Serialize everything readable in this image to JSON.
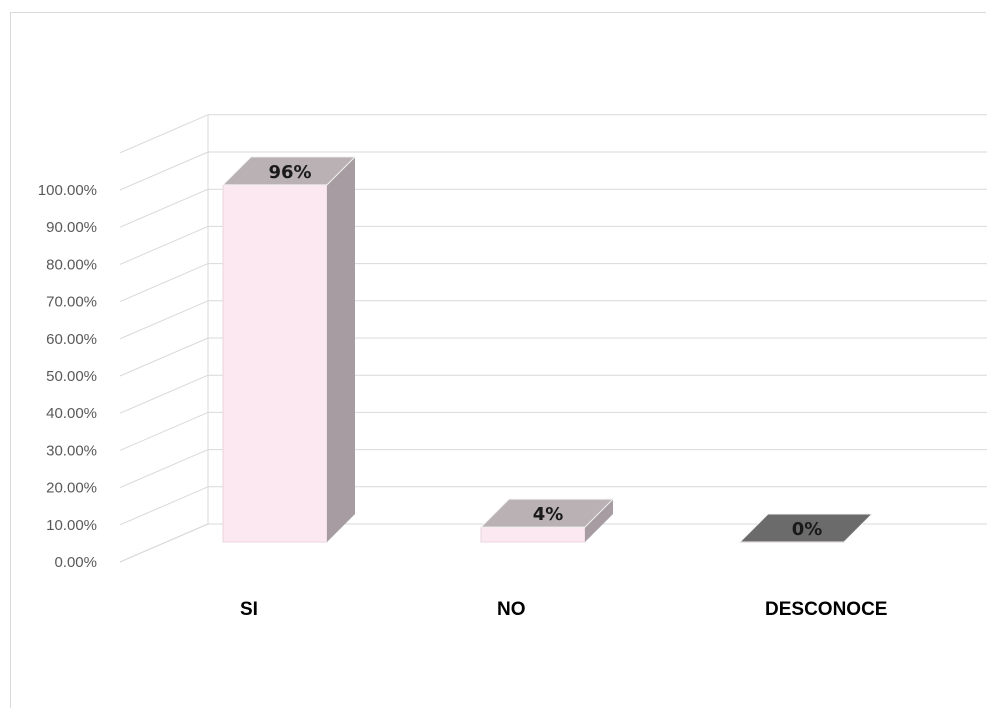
{
  "chart_data": {
    "type": "bar",
    "categories": [
      "SI",
      "NO",
      "DESCONOCE"
    ],
    "values": [
      96,
      4,
      0
    ],
    "data_labels": [
      "96%",
      "4%",
      "0%"
    ],
    "yticks": [
      "0.00%",
      "10.00%",
      "20.00%",
      "30.00%",
      "40.00%",
      "50.00%",
      "60.00%",
      "70.00%",
      "80.00%",
      "90.00%",
      "100.00%"
    ],
    "ylim": [
      0,
      100
    ],
    "grid": true,
    "style": "3d-column",
    "colors": {
      "SI": "#fbe8f0",
      "NO": "#fbe8f0",
      "DESCONOCE": "#6b6b6b",
      "top_face": "#b9b1b4",
      "side_face": "#a69ca1",
      "gridline": "#d9d9d9"
    }
  }
}
